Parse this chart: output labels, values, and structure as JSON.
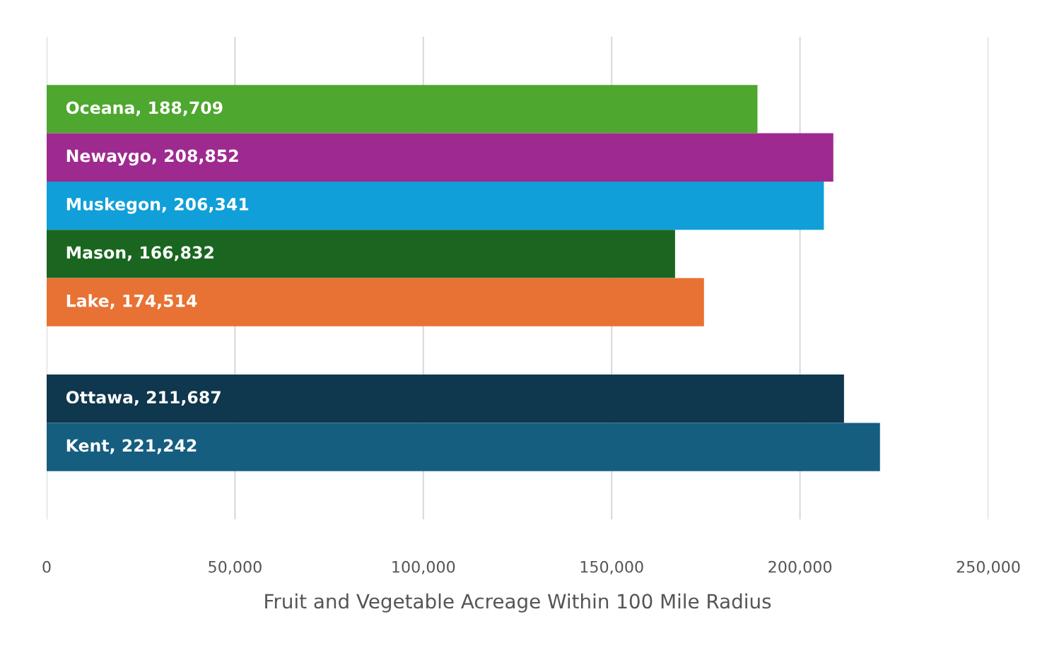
{
  "chart_data": {
    "type": "bar",
    "orientation": "horizontal",
    "xlabel": "Fruit and Vegetable Acreage Within 100 Mile Radius",
    "categories": [
      null,
      null,
      null,
      null,
      null,
      null,
      null,
      null,
      null,
      null
    ],
    "values": [
      null,
      188709,
      208852,
      206341,
      166832,
      174514,
      null,
      211687,
      221242,
      null
    ],
    "value_labels": [
      null,
      "Oceana, 188,709",
      "Newaygo, 208,852",
      "Muskegon, 206,341",
      "Mason, 166,832",
      "Lake, 174,514",
      null,
      "Ottawa, 211,687",
      "Kent, 221,242",
      null
    ],
    "colors": [
      null,
      "#4ea72e",
      "#9e2a8f",
      "#109fd8",
      "#1a6620",
      "#e87233",
      null,
      "#0f374d",
      "#165e80",
      null
    ],
    "xlim": [
      0,
      250000
    ],
    "xticks": [
      0,
      {
        "value": 50000,
        "label": "50,000"
      },
      {
        "value": 100000,
        "label": "100,000"
      },
      {
        "value": 150000,
        "label": "150,000"
      },
      {
        "value": 200000,
        "label": "200,000"
      },
      {
        "value": 250000,
        "label": "250,000"
      }
    ],
    "grid": "x",
    "tick_labels": "x",
    "legend": false
  }
}
